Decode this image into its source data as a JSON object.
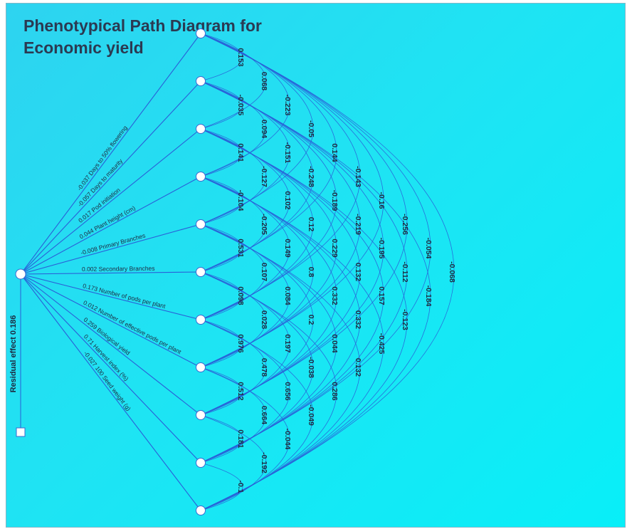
{
  "title": {
    "line1": "Phenotypical Path Diagram for",
    "line2": "Economic yield"
  },
  "residual_label": "Residual effect",
  "residual_value": "0.186",
  "traits": [
    {
      "name": "Days to 50% flowering",
      "direct": "-0.037"
    },
    {
      "name": "Days to maturity",
      "direct": "-0.057"
    },
    {
      "name": "Pod initiation",
      "direct": "0.017"
    },
    {
      "name": "Plant height (cm)",
      "direct": "0.044"
    },
    {
      "name": "Primary Branches",
      "direct": "-0.008"
    },
    {
      "name": "Secondary Branches",
      "direct": "0.002"
    },
    {
      "name": "Number of pods per plant",
      "direct": "0.173"
    },
    {
      "name": "Number of effective pods per plant",
      "direct": "0.012"
    },
    {
      "name": "Biological yield",
      "direct": "0.259"
    },
    {
      "name": "Harvest index (%)",
      "direct": "0.71"
    },
    {
      "name": "100 Seed weight (g)",
      "direct": "-0.027"
    }
  ],
  "correlations": [
    [
      "0.153",
      "-0.035",
      "0.141",
      "-0.104",
      "0.531",
      "0.098",
      "0.976",
      "0.512",
      "0.181",
      "-0.1"
    ],
    [
      "0.068",
      "0.094",
      "-0.127",
      "-0.205",
      "0.107",
      "0.028",
      "0.478",
      "0.664",
      "-0.192"
    ],
    [
      "-0.223",
      "-0.151",
      "0.102",
      "0.149",
      "0.084",
      "0.197",
      "0.656",
      "-0.044"
    ],
    [
      "-0.05",
      "-0.248",
      "0.12",
      "0.8",
      "0.2",
      "-0.038",
      "-0.049"
    ],
    [
      "0.144",
      "-0.189",
      "0.229",
      "0.332",
      "0.044",
      "0.286"
    ],
    [
      "-0.143",
      "-0.219",
      "0.132",
      "0.332",
      "0.132"
    ],
    [
      "-0.16",
      "-0.195",
      "0.157",
      "-0.425"
    ],
    [
      "-0.256",
      "-0.112",
      "-0.123"
    ],
    [
      "-0.054",
      "-0.184"
    ],
    [
      "-0.068"
    ]
  ],
  "colors": {
    "line": "#2a5fd8",
    "text": "#1e2a40",
    "node_stroke": "#3a6ad0"
  }
}
